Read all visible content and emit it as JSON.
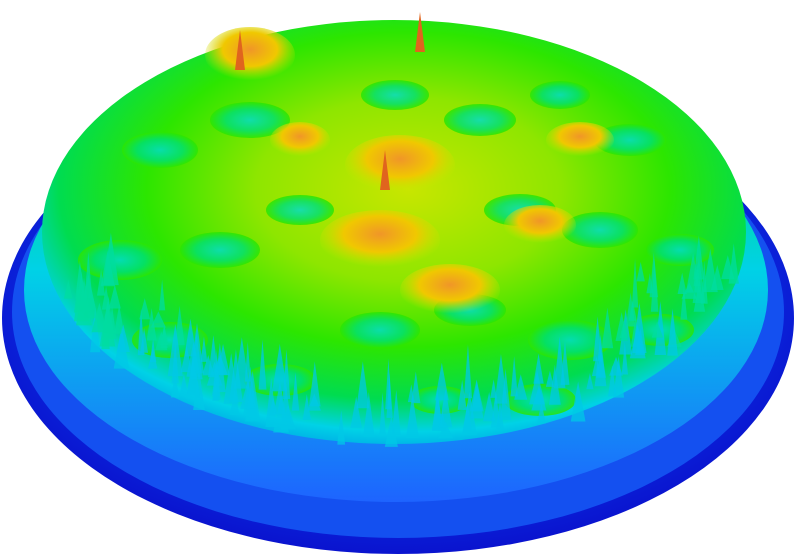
{
  "scene": {
    "background": "#ffffff",
    "colormap": [
      "#0a0ac8",
      "#1e64ff",
      "#00d2e6",
      "#00dc50",
      "#2ce600",
      "#c8e600",
      "#f0c800",
      "#f08c1e",
      "#d23c1e"
    ]
  }
}
